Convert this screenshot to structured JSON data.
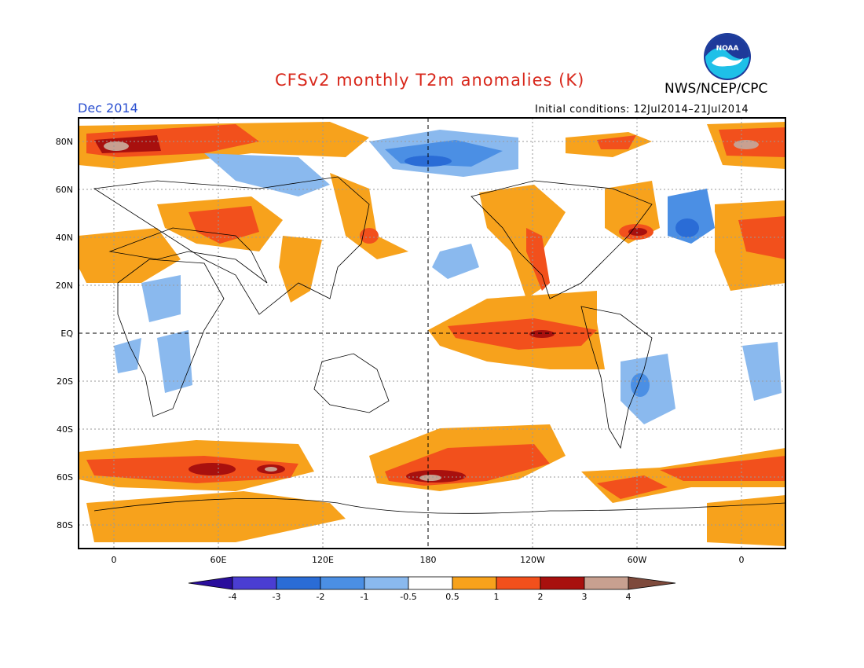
{
  "title": "CFSv2 monthly T2m anomalies (K)",
  "agency": "NWS/NCEP/CPC",
  "period": "Dec 2014",
  "initial_conditions": "Initial conditions: 12Jul2014–21Jul2014",
  "logo_text": "NOAA",
  "lat_labels": [
    "80N",
    "60N",
    "40N",
    "20N",
    "EQ",
    "20S",
    "40S",
    "60S",
    "80S"
  ],
  "lon_labels": [
    "0",
    "60E",
    "120E",
    "180",
    "120W",
    "60W",
    "0"
  ],
  "legend": {
    "levels": [
      "-4",
      "-3",
      "-2",
      "-1",
      "-0.5",
      "0.5",
      "1",
      "2",
      "3",
      "4"
    ],
    "colors": [
      "#2a0e9c",
      "#4a3dd2",
      "#2a6cd6",
      "#4b8fe4",
      "#8ab9ee",
      "#ffffff",
      "#f7a21c",
      "#f2501c",
      "#a8100e",
      "#c8a090",
      "#7e4a3c"
    ]
  },
  "colors": {
    "title": "#d8281c",
    "period": "#2a4fd0",
    "frame": "#000000"
  }
}
